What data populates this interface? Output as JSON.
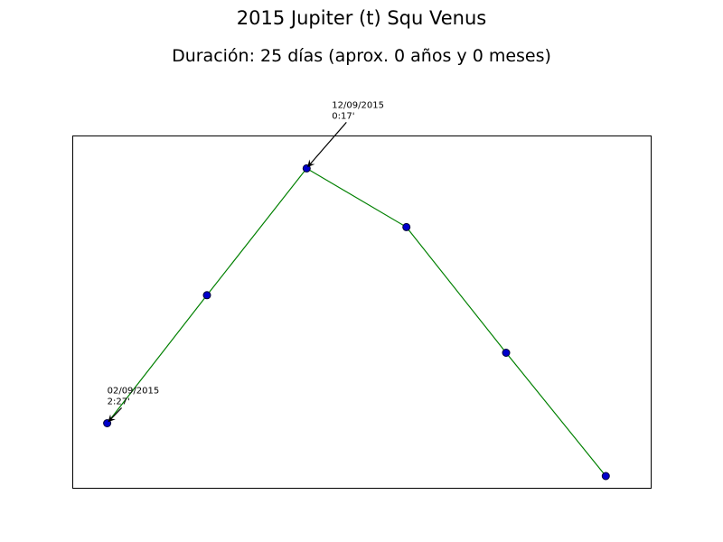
{
  "chart_data": {
    "type": "line",
    "title": "2015 Jupiter (t) Squ Venus",
    "subtitle": "Duración: 25 días (aprox. 0 años y 0 meses)",
    "x_axis": {
      "ticks": "none",
      "label": ""
    },
    "y_axis": {
      "ticks": "none",
      "label": ""
    },
    "grid": false,
    "legend": false,
    "colors": {
      "line": "#008000",
      "marker_fill": "#0000cc",
      "marker_edge": "#000033",
      "frame": "#000000"
    },
    "points": [
      {
        "x": 0,
        "y": 2.45
      },
      {
        "x": 1,
        "y": 1.36
      },
      {
        "x": 2,
        "y": 0.28
      },
      {
        "x": 3,
        "y": 0.78
      },
      {
        "x": 4,
        "y": 1.85
      },
      {
        "x": 5,
        "y": 2.9
      }
    ],
    "xlim": [
      -0.35,
      5.45
    ],
    "ylim": [
      3.0,
      0.0
    ],
    "annotations": [
      {
        "point_index": 0,
        "lines": [
          "02/09/2015",
          "2:27'"
        ]
      },
      {
        "point_index": 2,
        "lines": [
          "12/09/2015",
          "0:17'"
        ]
      }
    ]
  }
}
